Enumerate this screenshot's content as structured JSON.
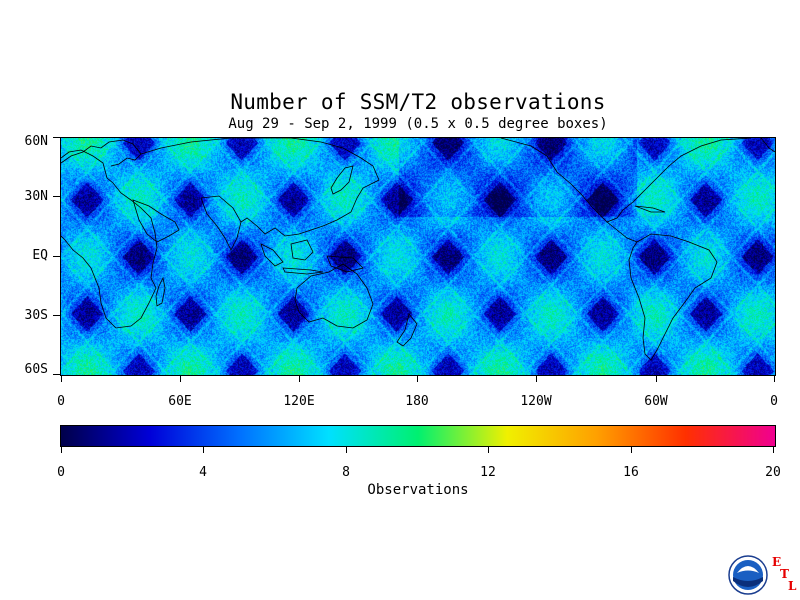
{
  "title": "Number of SSM/T2 observations",
  "subtitle": "Aug 29 - Sep 2, 1999 (0.5 x 0.5 degree boxes)",
  "map": {
    "projection": "equirectangular",
    "lon_range": [
      0,
      360
    ],
    "lat_range": [
      -60,
      60
    ],
    "lat_labels": [
      "60N",
      "30N",
      "EQ",
      "30S",
      "60S"
    ],
    "lon_labels": [
      "0",
      "60E",
      "120E",
      "180",
      "120W",
      "60W",
      "0"
    ]
  },
  "colorbar": {
    "label": "Observations",
    "range": [
      0,
      20
    ],
    "tick_labels": [
      "0",
      "4",
      "8",
      "12",
      "16",
      "20"
    ],
    "colors": [
      "#00004a",
      "#0000d8",
      "#0070ff",
      "#00e0ff",
      "#00f070",
      "#f0f000",
      "#ffa000",
      "#ff3000",
      "#f00090"
    ]
  },
  "logo": {
    "name": "NOAA",
    "letters": [
      "E",
      "T",
      "L"
    ]
  }
}
